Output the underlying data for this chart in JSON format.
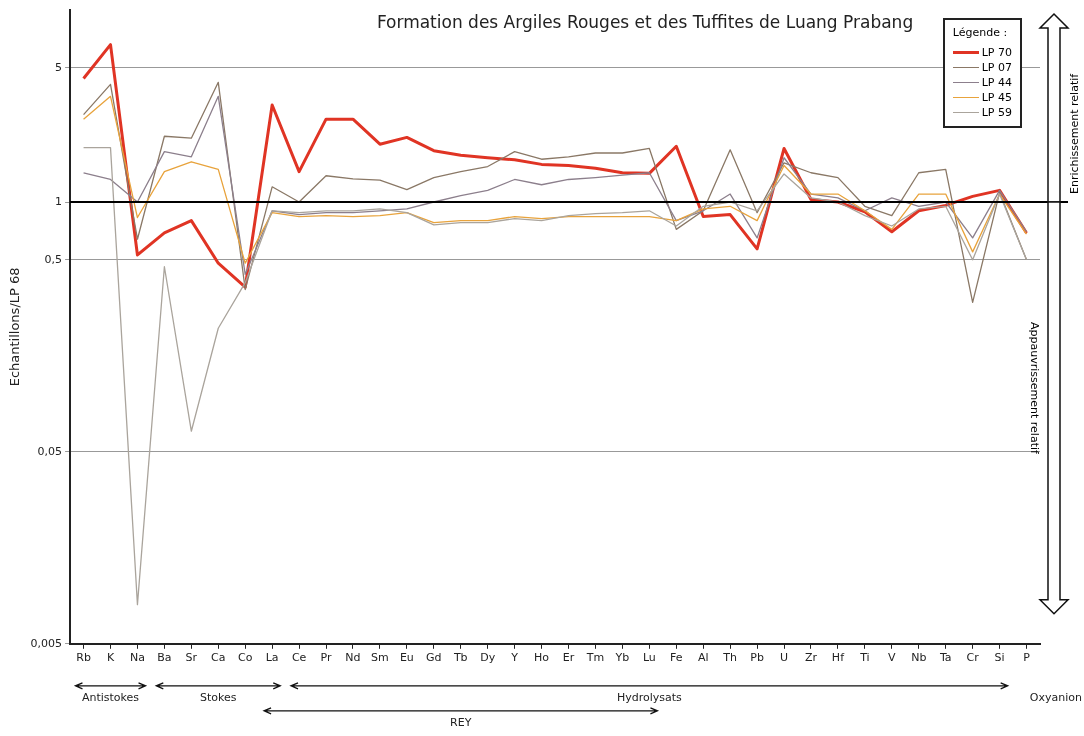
{
  "chart_data": {
    "type": "line",
    "title": "Formation des Argiles Rouges et des Tuffites de Luang Prabang",
    "ylabel": "Echantillons/LP 68",
    "legend_title": "Légende :",
    "legend": "top right",
    "grid": "y",
    "log": "y",
    "categories": [
      "Rb",
      "K",
      "Na",
      "Ba",
      "Sr",
      "Ca",
      "Co",
      "La",
      "Ce",
      "Pr",
      "Nd",
      "Sm",
      "Eu",
      "Gd",
      "Tb",
      "Dy",
      "Y",
      "Ho",
      "Er",
      "Tm",
      "Yb",
      "Lu",
      "Fe",
      "Al",
      "Th",
      "Pb",
      "U",
      "Zr",
      "Hf",
      "Ti",
      "V",
      "Nb",
      "Ta",
      "Cr",
      "Si",
      "P"
    ],
    "ylim": [
      0.005,
      10
    ],
    "yticks": [
      {
        "value": 0.005,
        "label": "0,005"
      },
      {
        "value": 0.05,
        "label": "0,05"
      },
      {
        "value": 0.5,
        "label": "0,5"
      },
      {
        "value": 1,
        "label": "1"
      },
      {
        "value": 5,
        "label": "5"
      }
    ],
    "ref_lines": [
      {
        "axis": "y",
        "value": 1,
        "color": "#000000"
      }
    ],
    "series": [
      {
        "name": "LP 70",
        "color": "#e03424",
        "values": [
          4.4,
          6.6,
          0.53,
          0.69,
          0.8,
          0.48,
          0.36,
          3.2,
          1.44,
          2.7,
          2.7,
          2.0,
          2.17,
          1.85,
          1.75,
          1.7,
          1.66,
          1.57,
          1.55,
          1.5,
          1.42,
          1.41,
          1.95,
          0.84,
          0.86,
          0.57,
          1.9,
          1.03,
          1.0,
          0.89,
          0.7,
          0.9,
          0.96,
          1.07,
          1.15,
          0.69
        ]
      },
      {
        "name": "LP 07",
        "color": "#8a7866",
        "values": [
          2.85,
          4.1,
          0.64,
          2.2,
          2.15,
          4.2,
          0.35,
          1.2,
          1.0,
          1.37,
          1.32,
          1.3,
          1.16,
          1.34,
          1.44,
          1.53,
          1.83,
          1.67,
          1.72,
          1.8,
          1.8,
          1.9,
          0.72,
          0.9,
          1.87,
          0.88,
          1.6,
          1.42,
          1.34,
          0.95,
          0.85,
          1.42,
          1.48,
          0.3,
          1.12,
          0.5
        ]
      },
      {
        "name": "LP 44",
        "color": "#8c7f8c",
        "values": [
          1.42,
          1.31,
          1.0,
          1.83,
          1.72,
          3.55,
          0.42,
          0.9,
          0.86,
          0.88,
          0.88,
          0.9,
          0.92,
          1.0,
          1.08,
          1.15,
          1.31,
          1.23,
          1.31,
          1.34,
          1.38,
          1.42,
          0.8,
          0.9,
          1.1,
          0.65,
          1.7,
          1.1,
          1.05,
          0.9,
          1.05,
          0.95,
          1.0,
          0.65,
          1.15,
          0.7
        ]
      },
      {
        "name": "LP 45",
        "color": "#e8a33c",
        "values": [
          2.7,
          3.55,
          0.83,
          1.44,
          1.62,
          1.48,
          0.48,
          0.88,
          0.84,
          0.85,
          0.84,
          0.85,
          0.88,
          0.78,
          0.8,
          0.8,
          0.84,
          0.82,
          0.84,
          0.84,
          0.84,
          0.84,
          0.8,
          0.92,
          0.95,
          0.8,
          1.55,
          1.1,
          1.1,
          0.9,
          0.72,
          1.1,
          1.1,
          0.55,
          1.1,
          0.68
        ]
      },
      {
        "name": "LP 59",
        "color": "#aaa49c",
        "values": [
          1.92,
          1.92,
          0.008,
          0.46,
          0.064,
          0.22,
          0.38,
          0.9,
          0.88,
          0.9,
          0.9,
          0.92,
          0.88,
          0.76,
          0.78,
          0.78,
          0.82,
          0.8,
          0.85,
          0.87,
          0.88,
          0.9,
          0.75,
          0.95,
          1.0,
          0.9,
          1.4,
          1.05,
          1.0,
          0.85,
          0.75,
          0.92,
          0.95,
          0.5,
          1.1,
          0.5
        ]
      }
    ],
    "annotations": [
      "Antistokes",
      "Stokes",
      "Hydrolysats",
      "REY",
      "Oxyanion",
      "Enrichissement relatif",
      "Appauvrissement relatif"
    ]
  }
}
